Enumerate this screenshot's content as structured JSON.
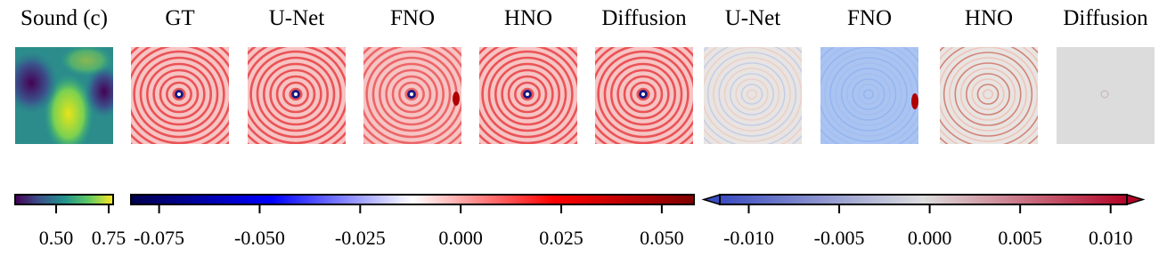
{
  "panels": [
    {
      "title": "Sound (c)"
    },
    {
      "title": "GT"
    },
    {
      "title": "U-Net"
    },
    {
      "title": "FNO"
    },
    {
      "title": "HNO"
    },
    {
      "title": "Diffusion"
    },
    {
      "title": "U-Net"
    },
    {
      "title": "FNO"
    },
    {
      "title": "HNO"
    },
    {
      "title": "Diffusion"
    }
  ],
  "colorbars": [
    {
      "range": [
        0.305,
        0.771
      ],
      "ticks": [
        {
          "value": 0.5,
          "label": "0.50"
        },
        0.75
      ]
    },
    {
      "range": [
        -0.082,
        0.058
      ],
      "ticks": [
        {
          "value": -0.075,
          "label": "-0.075"
        },
        {
          "value": -0.05,
          "label": "-0.050"
        },
        {
          "value": -0.025,
          "label": "-0.025"
        },
        {
          "value": 0,
          "label": "0.000"
        },
        {
          "value": 0.025,
          "label": "0.025"
        },
        {
          "value": 0.05,
          "label": "0.050"
        }
      ]
    },
    {
      "range": [
        -0.0116,
        0.0109
      ],
      "ticks": [
        {
          "value": -0.01,
          "label": "-0.010"
        },
        {
          "value": -0.005,
          "label": "-0.005"
        },
        {
          "value": 0,
          "label": "0.000"
        },
        {
          "value": 0.005,
          "label": "0.005"
        },
        {
          "value": 0.01,
          "label": "0.010"
        }
      ]
    }
  ]
}
